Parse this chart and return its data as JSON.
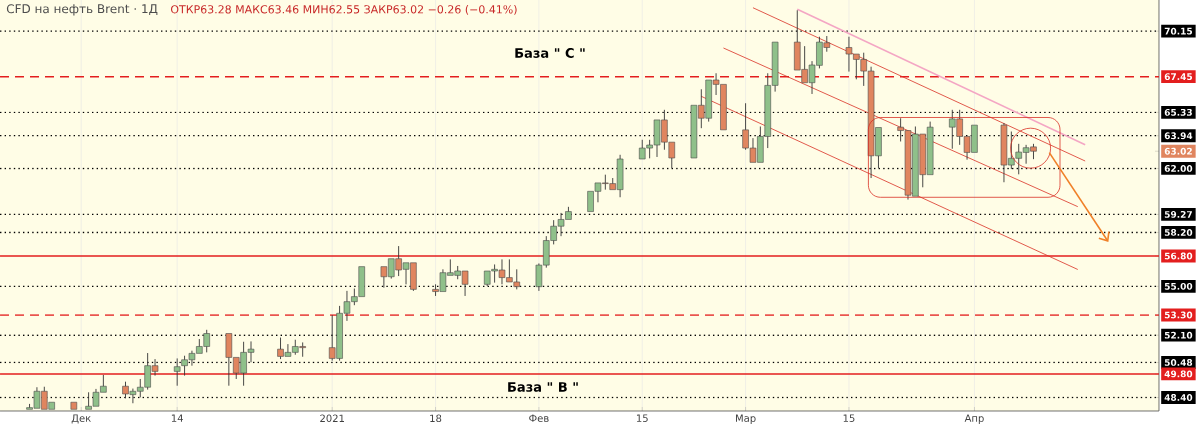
{
  "chart_data": {
    "type": "candlestick",
    "title": "CFD на нефть Brent · 1Д",
    "subtitle": "ОТКР63.28 МАКС63.46 МИН62.55 ЗАКР63.02 −0.26 (−0.41%)",
    "x": [
      "2020-11-24",
      "2020-11-25",
      "2020-11-26",
      "2020-11-27",
      "2020-11-30",
      "2020-12-02",
      "2020-12-03",
      "2020-12-04",
      "2020-12-07",
      "2020-12-08",
      "2020-12-09",
      "2020-12-10",
      "2020-12-11",
      "2020-12-14",
      "2020-12-15",
      "2020-12-16",
      "2020-12-17",
      "2020-12-18",
      "2020-12-21",
      "2020-12-22",
      "2020-12-23",
      "2020-12-24",
      "2020-12-28",
      "2020-12-29",
      "2020-12-30",
      "2020-12-31",
      "2021-01-04",
      "2021-01-05",
      "2021-01-06",
      "2021-01-07",
      "2021-01-08",
      "2021-01-11",
      "2021-01-12",
      "2021-01-13",
      "2021-01-14",
      "2021-01-15",
      "2021-01-18",
      "2021-01-19",
      "2021-01-20",
      "2021-01-21",
      "2021-01-22",
      "2021-01-25",
      "2021-01-26",
      "2021-01-27",
      "2021-01-28",
      "2021-01-29",
      "2021-02-01",
      "2021-02-02",
      "2021-02-03",
      "2021-02-04",
      "2021-02-05",
      "2021-02-08",
      "2021-02-09",
      "2021-02-10",
      "2021-02-11",
      "2021-02-12",
      "2021-02-15",
      "2021-02-16",
      "2021-02-17",
      "2021-02-18",
      "2021-02-19",
      "2021-02-22",
      "2021-02-23",
      "2021-02-24",
      "2021-02-25",
      "2021-02-26",
      "2021-03-01",
      "2021-03-02",
      "2021-03-03",
      "2021-03-04",
      "2021-03-05",
      "2021-03-08",
      "2021-03-09",
      "2021-03-10",
      "2021-03-11",
      "2021-03-12",
      "2021-03-15",
      "2021-03-16",
      "2021-03-17",
      "2021-03-18",
      "2021-03-19",
      "2021-03-22",
      "2021-03-23",
      "2021-03-24",
      "2021-03-25",
      "2021-03-26",
      "2021-03-29",
      "2021-03-30",
      "2021-03-31",
      "2021-04-01",
      "2021-04-05",
      "2021-04-06",
      "2021-04-07",
      "2021-04-08",
      "2021-04-09"
    ],
    "ohlc": [
      [
        47.7,
        48.02,
        47.7,
        47.8
      ],
      [
        47.76,
        49.01,
        47.76,
        48.77
      ],
      [
        48.77,
        49.04,
        47.7,
        47.7
      ],
      [
        47.7,
        48.12,
        47.7,
        48.12
      ],
      [
        48.12,
        48.12,
        47.7,
        47.7
      ],
      [
        47.7,
        48.71,
        47.7,
        47.88
      ],
      [
        47.88,
        48.91,
        47.88,
        48.71
      ],
      [
        48.71,
        49.74,
        48.71,
        49.07
      ],
      [
        49.07,
        49.34,
        48.35,
        48.61
      ],
      [
        48.57,
        48.93,
        48.06,
        48.77
      ],
      [
        48.77,
        49.5,
        48.41,
        49.01
      ],
      [
        49.01,
        51.04,
        48.87,
        50.29
      ],
      [
        50.29,
        50.68,
        49.7,
        49.95
      ],
      [
        49.95,
        50.72,
        49.1,
        50.23
      ],
      [
        50.29,
        50.88,
        49.7,
        50.64
      ],
      [
        50.64,
        51.18,
        50.29,
        51.02
      ],
      [
        51.02,
        51.87,
        51.02,
        51.43
      ],
      [
        51.43,
        52.42,
        51.08,
        52.2
      ],
      [
        52.2,
        52.2,
        49.1,
        50.78
      ],
      [
        50.78,
        50.78,
        49.5,
        49.85
      ],
      [
        49.85,
        51.71,
        49.1,
        51.08
      ],
      [
        51.08,
        51.73,
        50.49,
        51.27
      ],
      [
        51.27,
        51.96,
        50.68,
        50.84
      ],
      [
        50.84,
        51.57,
        50.84,
        51.08
      ],
      [
        51.08,
        51.83,
        50.94,
        51.43
      ],
      [
        51.43,
        51.67,
        50.82,
        51.36
      ],
      [
        51.36,
        53.29,
        50.59,
        50.72
      ],
      [
        50.72,
        53.84,
        50.59,
        53.4
      ],
      [
        53.4,
        54.73,
        52.95,
        54.09
      ],
      [
        54.09,
        54.87,
        53.88,
        54.39
      ],
      [
        54.39,
        56.17,
        54.39,
        56.17
      ],
      [
        56.17,
        56.17,
        54.92,
        55.57
      ],
      [
        55.57,
        56.64,
        55.46,
        56.64
      ],
      [
        56.64,
        57.39,
        55.61,
        55.97
      ],
      [
        56.01,
        56.4,
        55.12,
        56.4
      ],
      [
        56.4,
        56.4,
        54.73,
        54.82
      ],
      [
        54.82,
        55.12,
        54.43,
        54.69
      ],
      [
        54.69,
        56.01,
        54.69,
        55.81
      ],
      [
        55.65,
        56.6,
        55.65,
        55.81
      ],
      [
        55.65,
        56.21,
        55.42,
        55.91
      ],
      [
        55.91,
        55.91,
        54.43,
        55.12
      ],
      [
        55.12,
        55.91,
        55.02,
        55.91
      ],
      [
        55.91,
        56.3,
        55.22,
        56.01
      ],
      [
        55.97,
        56.6,
        55.12,
        55.52
      ],
      [
        55.52,
        56.6,
        55.26,
        55.26
      ],
      [
        55.26,
        56.01,
        54.82,
        54.98
      ],
      [
        54.98,
        56.36,
        54.73,
        56.26
      ],
      [
        56.26,
        57.98,
        56.11,
        57.72
      ],
      [
        57.72,
        58.93,
        57.49,
        58.57
      ],
      [
        58.57,
        59.36,
        57.98,
        58.97
      ],
      [
        58.97,
        59.72,
        58.97,
        59.44
      ],
      [
        59.44,
        60.64,
        59.44,
        60.64
      ],
      [
        60.64,
        61.14,
        59.99,
        61.14
      ],
      [
        61.14,
        61.63,
        60.74,
        61.1
      ],
      [
        61.1,
        61.43,
        60.74,
        60.74
      ],
      [
        60.74,
        62.81,
        60.29,
        62.56
      ],
      [
        62.56,
        63.7,
        62.56,
        63.21
      ],
      [
        63.21,
        63.7,
        62.6,
        63.39
      ],
      [
        63.39,
        64.88,
        62.68,
        64.88
      ],
      [
        64.88,
        65.48,
        63.11,
        63.56
      ],
      [
        63.56,
        63.56,
        62.02,
        62.62
      ],
      [
        62.62,
        65.75,
        62.62,
        65.75
      ],
      [
        65.75,
        66.7,
        64.39,
        64.98
      ],
      [
        64.98,
        67.25,
        64.78,
        67.25
      ],
      [
        67.25,
        67.65,
        66.36,
        66.99
      ],
      [
        66.99,
        66.99,
        64.29,
        64.29
      ],
      [
        64.29,
        65.87,
        63.11,
        63.21
      ],
      [
        63.21,
        63.8,
        62.36,
        62.36
      ],
      [
        62.36,
        64.49,
        62.36,
        63.9
      ],
      [
        63.9,
        67.65,
        63.21,
        66.93
      ],
      [
        66.93,
        69.5,
        66.56,
        69.5
      ],
      [
        69.5,
        71.39,
        67.84,
        67.84
      ],
      [
        67.88,
        69.26,
        67.09,
        67.09
      ],
      [
        67.09,
        68.37,
        66.42,
        68.14
      ],
      [
        68.12,
        69.82,
        67.94,
        69.5
      ],
      [
        69.46,
        69.86,
        68.93,
        69.18
      ],
      [
        69.18,
        69.82,
        67.75,
        68.79
      ],
      [
        68.79,
        68.79,
        67.29,
        68.47
      ],
      [
        68.47,
        68.87,
        66.9,
        67.78
      ],
      [
        67.78,
        68.04,
        61.43,
        62.75
      ],
      [
        62.75,
        64.43,
        62.02,
        64.43
      ],
      [
        64.45,
        64.98,
        63.6,
        64.25
      ],
      [
        64.25,
        64.25,
        60.15,
        60.41
      ],
      [
        60.35,
        64.49,
        60.35,
        64.04
      ],
      [
        64.04,
        64.04,
        60.88,
        61.63
      ],
      [
        61.63,
        64.78,
        61.63,
        64.45
      ],
      [
        64.45,
        65.48,
        63.17,
        64.94
      ],
      [
        64.94,
        65.48,
        63.4,
        63.9
      ],
      [
        63.9,
        63.9,
        62.52,
        62.95
      ],
      [
        62.95,
        64.57,
        62.95,
        64.57
      ],
      [
        64.57,
        64.69,
        61.18,
        62.2
      ],
      [
        62.2,
        64.19,
        61.96,
        62.6
      ],
      [
        62.6,
        63.46,
        61.65,
        62.97
      ],
      [
        62.95,
        63.4,
        62.28,
        63.23
      ],
      [
        63.28,
        63.46,
        62.55,
        63.02
      ]
    ],
    "colors": [
      "#8fc08a",
      "#8fc08a",
      "#e0855f",
      "#8fc08a",
      "#e0855f",
      "#8fc08a",
      "#8fc08a",
      "#8fc08a",
      "#e0855f",
      "#8fc08a",
      "#8fc08a",
      "#8fc08a",
      "#e0855f",
      "#8fc08a",
      "#8fc08a",
      "#8fc08a",
      "#8fc08a",
      "#8fc08a",
      "#e0855f",
      "#e0855f",
      "#8fc08a",
      "#8fc08a",
      "#e0855f",
      "#8fc08a",
      "#8fc08a",
      "#e0855f",
      "#e0855f",
      "#8fc08a",
      "#8fc08a",
      "#8fc08a",
      "#8fc08a",
      "#e0855f",
      "#8fc08a",
      "#e0855f",
      "#8fc08a",
      "#e0855f",
      "#e0855f",
      "#8fc08a",
      "#8fc08a",
      "#8fc08a",
      "#e0855f",
      "#8fc08a",
      "#8fc08a",
      "#e0855f",
      "#e0855f",
      "#e0855f",
      "#8fc08a",
      "#8fc08a",
      "#8fc08a",
      "#8fc08a",
      "#8fc08a",
      "#8fc08a",
      "#8fc08a",
      "#e0855f",
      "#e0855f",
      "#8fc08a",
      "#8fc08a",
      "#8fc08a",
      "#8fc08a",
      "#e0855f",
      "#e0855f",
      "#8fc08a",
      "#e0855f",
      "#8fc08a",
      "#e0855f",
      "#e0855f",
      "#e0855f",
      "#e0855f",
      "#8fc08a",
      "#8fc08a",
      "#8fc08a",
      "#e0855f",
      "#e0855f",
      "#8fc08a",
      "#8fc08a",
      "#e0855f",
      "#e0855f",
      "#e0855f",
      "#e0855f",
      "#e0855f",
      "#8fc08a",
      "#e0855f",
      "#e0855f",
      "#8fc08a",
      "#e0855f",
      "#8fc08a",
      "#8fc08a",
      "#e0855f",
      "#e0855f",
      "#8fc08a",
      "#e0855f",
      "#8fc08a",
      "#8fc08a",
      "#8fc08a",
      "#e0855f"
    ],
    "xlim": [
      "2020-11-20",
      "2021-04-26"
    ],
    "xticks": [
      {
        "value": "2020-12-01",
        "label": "Дек"
      },
      {
        "value": "2020-12-14",
        "label": "14"
      },
      {
        "value": "2021-01-04",
        "label": "2021"
      },
      {
        "value": "2021-01-18",
        "label": "18"
      },
      {
        "value": "2021-02-01",
        "label": "Фев"
      },
      {
        "value": "2021-02-15",
        "label": "15"
      },
      {
        "value": "2021-03-01",
        "label": "Мар"
      },
      {
        "value": "2021-03-15",
        "label": "15"
      },
      {
        "value": "2021-04-01",
        "label": "Апр"
      }
    ],
    "ylim": [
      47.6,
      72.0
    ],
    "yticks": [
      {
        "value": 70.15,
        "label": "70.15"
      },
      {
        "value": 67.45,
        "label": "67.45"
      },
      {
        "value": 65.33,
        "label": "65.33"
      },
      {
        "value": 63.94,
        "label": "63.94"
      },
      {
        "value": 63.02,
        "label": "63.02"
      },
      {
        "value": 62,
        "label": "62.00"
      },
      {
        "value": 59.27,
        "label": "59.27"
      },
      {
        "value": 58.2,
        "label": "58.20"
      },
      {
        "value": 56.8,
        "label": "56.80"
      },
      {
        "value": 55,
        "label": "55.00"
      },
      {
        "value": 53.3,
        "label": "53.30"
      },
      {
        "value": 52.1,
        "label": "52.10"
      },
      {
        "value": 50.48,
        "label": "50.48"
      },
      {
        "value": 49.8,
        "label": "49.80"
      },
      {
        "value": 48.4,
        "label": "48.40"
      }
    ],
    "grid": "x",
    "ref_lines": [
      {
        "axis": "y",
        "value": 70.15,
        "color": "#000000",
        "line_style": "dotted"
      },
      {
        "axis": "y",
        "value": 67.45,
        "color": "#e31e1e",
        "line_style": "dashed"
      },
      {
        "axis": "y",
        "value": 65.33,
        "color": "#000000",
        "line_style": "dotted"
      },
      {
        "axis": "y",
        "value": 63.94,
        "color": "#000000",
        "line_style": "dotted"
      },
      {
        "axis": "y",
        "value": 62,
        "color": "#000000",
        "line_style": "dotted"
      },
      {
        "axis": "y",
        "value": 59.27,
        "color": "#000000",
        "line_style": "dotted"
      },
      {
        "axis": "y",
        "value": 58.2,
        "color": "#000000",
        "line_style": "dotted"
      },
      {
        "axis": "y",
        "value": 56.8,
        "color": "#e31e1e",
        "line_style": "solid"
      },
      {
        "axis": "y",
        "value": 55,
        "color": "#000000",
        "line_style": "dotted"
      },
      {
        "axis": "y",
        "value": 53.3,
        "color": "#e31e1e",
        "line_style": "dashed"
      },
      {
        "axis": "y",
        "value": 52.1,
        "color": "#000000",
        "line_style": "dotted"
      },
      {
        "axis": "y",
        "value": 50.48,
        "color": "#000000",
        "line_style": "dotted"
      },
      {
        "axis": "y",
        "value": 49.8,
        "color": "#e31e1e",
        "line_style": "solid"
      },
      {
        "axis": "y",
        "value": 48.4,
        "color": "#000000",
        "line_style": "dotted"
      }
    ],
    "series": [
      {
        "type": "line",
        "color": "#d93025",
        "x": [
          "2021-03-02",
          "2021-04-16"
        ],
        "values": [
          71.54,
          62.44
        ]
      },
      {
        "type": "line",
        "color": "#d93025",
        "x": [
          "2021-02-26",
          "2021-04-15"
        ],
        "values": [
          69.15,
          59.73
        ]
      },
      {
        "type": "line",
        "color": "#d93025",
        "x": [
          "2021-02-23",
          "2021-04-15"
        ],
        "values": [
          66.28,
          56.0
        ]
      },
      {
        "type": "line",
        "color": "#f4a6c4",
        "x": [
          "2021-03-08",
          "2021-04-16"
        ],
        "values": [
          71.45,
          63.41
        ]
      }
    ],
    "annotations": [
      "База  \" C \"",
      "База  \" B \""
    ]
  }
}
